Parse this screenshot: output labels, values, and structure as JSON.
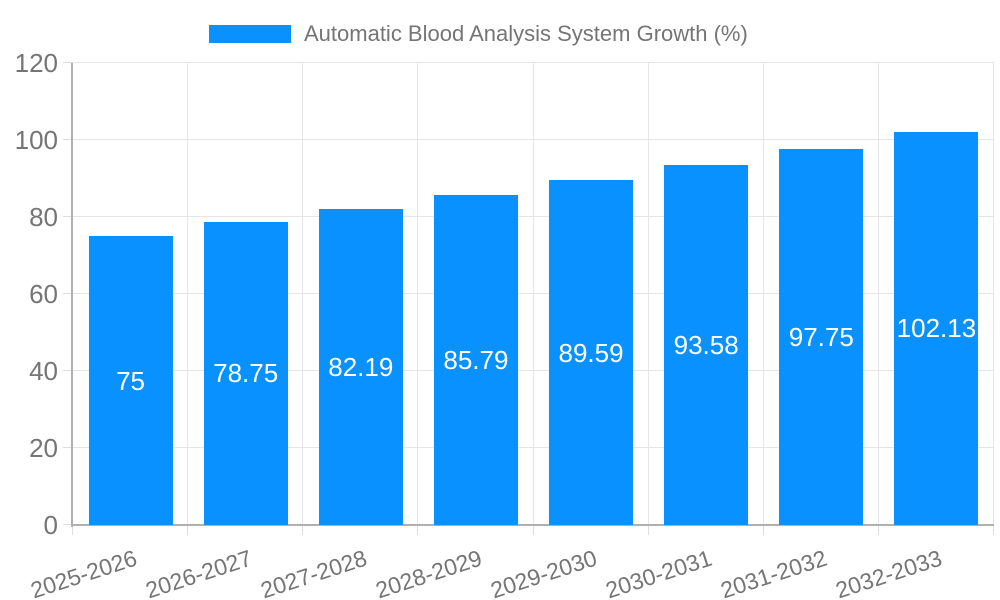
{
  "chart_data": {
    "type": "bar",
    "title": "Automatic Blood Analysis System Growth (%)",
    "xlabel": "",
    "ylabel": "",
    "categories": [
      "2025-2026",
      "2026-2027",
      "2027-2028",
      "2028-2029",
      "2029-2030",
      "2030-2031",
      "2031-2032",
      "2032-2033"
    ],
    "values": [
      75,
      78.75,
      82.19,
      85.79,
      89.59,
      93.58,
      97.75,
      102.13
    ],
    "value_labels": [
      "75",
      "78.75",
      "82.19",
      "85.79",
      "89.59",
      "93.58",
      "97.75",
      "102.13"
    ],
    "ylim": [
      0,
      120
    ],
    "yticks": [
      0,
      20,
      40,
      60,
      80,
      100,
      120
    ],
    "grid": true,
    "legend_position": "top",
    "colors": {
      "bar": "#0991ff",
      "axis_text": "#757575",
      "grid": "#e6e6e6",
      "tick": "#dddddd",
      "axis_line": "#b0b0b0",
      "value_label": "#ffffff",
      "background": "#ffffff"
    }
  }
}
